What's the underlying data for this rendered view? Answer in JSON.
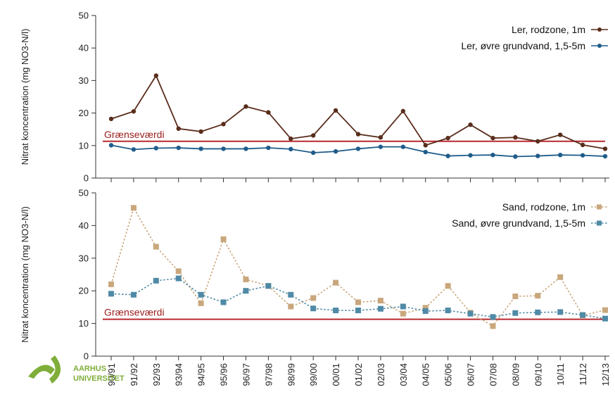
{
  "charts": [
    {
      "ylabel": "Nitrat koncentration (mg NO3-N/l)",
      "ylim": [
        0,
        50
      ],
      "yticks": [
        0,
        10,
        20,
        30,
        40,
        50
      ],
      "threshold": {
        "value": 11.3,
        "label": "Grænseværdi",
        "color": "#b8292f"
      },
      "series": [
        {
          "name": "Ler, rodzone, 1m",
          "color": "#5a2d1c",
          "style": "solid",
          "marker": "circle",
          "values": [
            18.2,
            20.5,
            31.5,
            15.2,
            14.3,
            16.6,
            22.0,
            20.2,
            12.1,
            13.1,
            20.8,
            13.5,
            12.5,
            20.6,
            10.1,
            12.3,
            16.4,
            12.3,
            12.5,
            11.3,
            13.3,
            10.2,
            9.0
          ]
        },
        {
          "name": "Ler, øvre grundvand, 1,5-5m",
          "color": "#1f5c8a",
          "style": "solid",
          "marker": "circle",
          "values": [
            10.1,
            8.8,
            9.2,
            9.3,
            9.0,
            9.0,
            9.0,
            9.3,
            8.9,
            7.8,
            8.2,
            9.0,
            9.6,
            9.6,
            8.0,
            6.8,
            7.0,
            7.1,
            6.6,
            6.8,
            7.1,
            7.0,
            6.7
          ]
        }
      ]
    },
    {
      "ylabel": "Nitrat koncentration (mg NO3-N/l)",
      "ylim": [
        0,
        50
      ],
      "yticks": [
        0,
        10,
        20,
        30,
        40,
        50
      ],
      "threshold": {
        "value": 11.3,
        "label": "Grænseværdi",
        "color": "#b8292f"
      },
      "series": [
        {
          "name": "Sand, rodzone, 1m",
          "color": "#c9a77c",
          "style": "dashed",
          "marker": "square",
          "values": [
            22.0,
            45.4,
            33.5,
            26.0,
            16.2,
            35.8,
            23.5,
            21.5,
            15.2,
            17.8,
            22.5,
            16.5,
            17.0,
            13.0,
            14.8,
            21.5,
            13.3,
            9.2,
            18.3,
            18.5,
            24.2,
            12.5,
            14.1
          ]
        },
        {
          "name": "Sand, øvre grundvand, 1,5-5m",
          "color": "#4f8aa6",
          "style": "dashed",
          "marker": "square",
          "values": [
            19.1,
            18.8,
            23.1,
            23.8,
            18.8,
            16.5,
            20.0,
            21.5,
            18.8,
            14.6,
            14.0,
            14.0,
            14.5,
            15.2,
            13.8,
            14.0,
            13.0,
            12.0,
            13.2,
            13.4,
            13.5,
            12.6,
            11.5
          ]
        }
      ]
    }
  ],
  "chart_data": [
    {
      "type": "line",
      "x": [
        "90/91",
        "91/92",
        "92/93",
        "93/94",
        "94/95",
        "95/96",
        "96/97",
        "97/98",
        "98/99",
        "99/00",
        "00/01",
        "01/02",
        "02/03",
        "03/04",
        "04/05",
        "05/06",
        "06/07",
        "07/08",
        "08/09",
        "09/10",
        "10/11",
        "11/12",
        "12/13"
      ],
      "ylabel": "Nitrat koncentration (mg NO3-N/l)",
      "ylim": [
        0,
        50
      ],
      "series": [
        {
          "name": "Ler, rodzone, 1m",
          "values": [
            18.2,
            20.5,
            31.5,
            15.2,
            14.3,
            16.6,
            22.0,
            20.2,
            12.1,
            13.1,
            20.8,
            13.5,
            12.5,
            20.6,
            10.1,
            12.3,
            16.4,
            12.3,
            12.5,
            11.3,
            13.3,
            10.2,
            9.0
          ]
        },
        {
          "name": "Ler, øvre grundvand, 1,5-5m",
          "values": [
            10.1,
            8.8,
            9.2,
            9.3,
            9.0,
            9.0,
            9.0,
            9.3,
            8.9,
            7.8,
            8.2,
            9.0,
            9.6,
            9.6,
            8.0,
            6.8,
            7.0,
            7.1,
            6.6,
            6.8,
            7.1,
            7.0,
            6.7
          ]
        }
      ],
      "annotations": [
        {
          "label": "Grænseværdi",
          "y": 11.3
        }
      ],
      "legend": "top-right",
      "grid": false
    },
    {
      "type": "line",
      "x": [
        "90/91",
        "91/92",
        "92/93",
        "93/94",
        "94/95",
        "95/96",
        "96/97",
        "97/98",
        "98/99",
        "99/00",
        "00/01",
        "01/02",
        "02/03",
        "03/04",
        "04/05",
        "05/06",
        "06/07",
        "07/08",
        "08/09",
        "09/10",
        "10/11",
        "11/12",
        "12/13"
      ],
      "ylabel": "Nitrat koncentration (mg NO3-N/l)",
      "ylim": [
        0,
        50
      ],
      "series": [
        {
          "name": "Sand, rodzone, 1m",
          "values": [
            22.0,
            45.4,
            33.5,
            26.0,
            16.2,
            35.8,
            23.5,
            21.5,
            15.2,
            17.8,
            22.5,
            16.5,
            17.0,
            13.0,
            14.8,
            21.5,
            13.3,
            9.2,
            18.3,
            18.5,
            24.2,
            12.5,
            14.1
          ]
        },
        {
          "name": "Sand, øvre grundvand, 1,5-5m",
          "values": [
            19.1,
            18.8,
            23.1,
            23.8,
            18.8,
            16.5,
            20.0,
            21.5,
            18.8,
            14.6,
            14.0,
            14.0,
            14.5,
            15.2,
            13.8,
            14.0,
            13.0,
            12.0,
            13.2,
            13.4,
            13.5,
            12.6,
            11.5
          ]
        }
      ],
      "annotations": [
        {
          "label": "Grænseværdi",
          "y": 11.3
        }
      ],
      "legend": "top-right",
      "grid": false
    }
  ],
  "logo": {
    "line1": "AARHUS",
    "line2": "UNIVERSITET",
    "color": "#7fae3a"
  }
}
